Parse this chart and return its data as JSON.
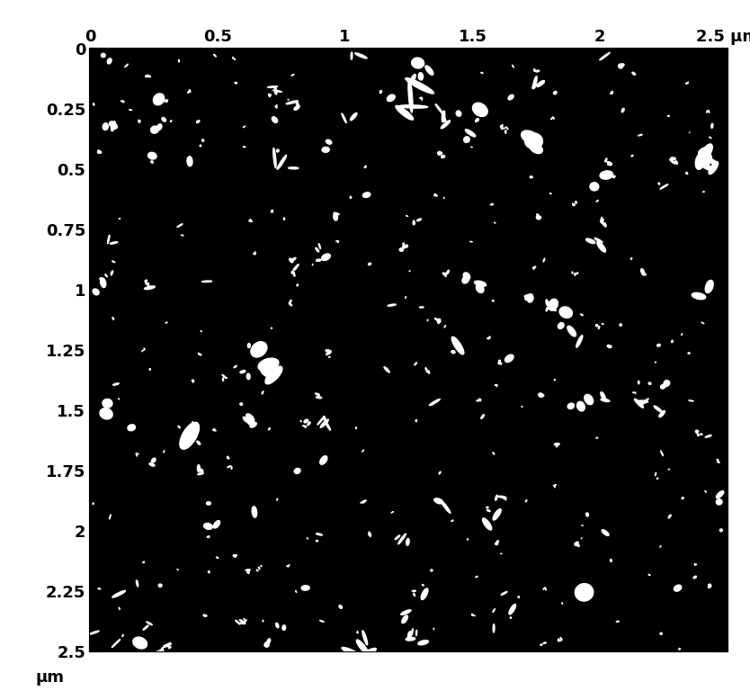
{
  "xlim": [
    0,
    2.5
  ],
  "ylim": [
    0,
    2.5
  ],
  "xticks": [
    0,
    0.5,
    1.0,
    1.5,
    2.0,
    2.5
  ],
  "yticks": [
    0,
    0.25,
    0.5,
    0.75,
    1.0,
    1.25,
    1.5,
    1.75,
    2.0,
    2.25,
    2.5
  ],
  "xticklabels": [
    "0",
    "0.5",
    "1",
    "1.5",
    "2",
    "2.5 μm"
  ],
  "yticklabels": [
    "0",
    "0.25",
    "0.5",
    "0.75",
    "1",
    "1.25",
    "1.5",
    "1.75",
    "2",
    "2.25",
    "2.5"
  ],
  "ylabel_extra": "μm",
  "background_color": "#000000",
  "spot_color": "#ffffff",
  "figsize": [
    8.34,
    7.78
  ],
  "dpi": 100,
  "tick_label_fontsize": 13,
  "seed": 42,
  "num_spots": 350,
  "spot_size_mean": 0.012,
  "spot_size_min": 0.004,
  "spot_size_max": 0.055
}
